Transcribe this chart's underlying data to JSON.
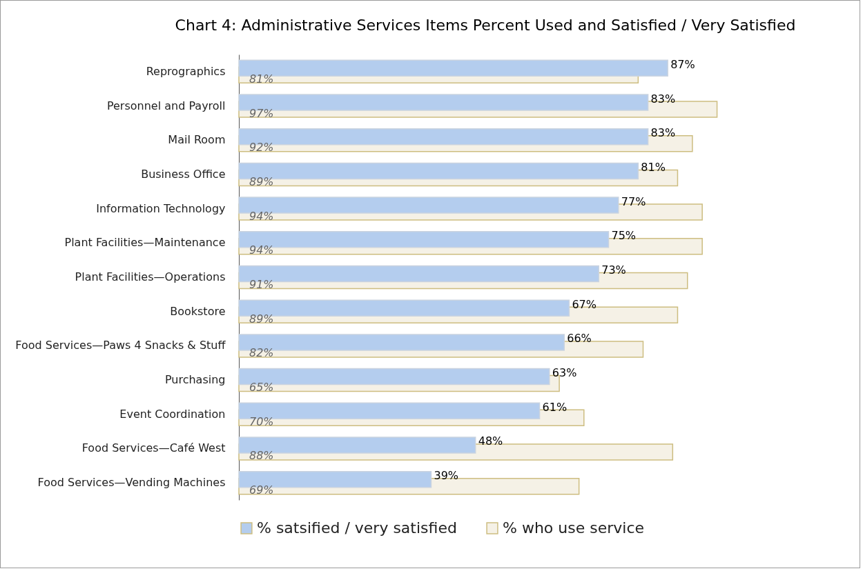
{
  "chart_data": {
    "type": "bar",
    "orientation": "horizontal",
    "title": "Chart 4: Administrative Services Items Percent Used and Satisfied / Very Satisfied",
    "categories": [
      "Reprographics",
      "Personnel and Payroll",
      "Mail Room",
      "Business Office",
      "Information Technology",
      "Plant Facilities—Maintenance",
      "Plant Facilities—Operations",
      "Bookstore",
      "Food Services—Paws 4 Snacks & Stuff",
      "Purchasing",
      "Event Coordination",
      "Food Services—Café West",
      "Food Services—Vending Machines"
    ],
    "series": [
      {
        "name": "% satsified / very satisfied",
        "color": "#b4cdee",
        "values": [
          87,
          83,
          83,
          81,
          77,
          75,
          73,
          67,
          66,
          63,
          61,
          48,
          39
        ],
        "value_labels": [
          "87%",
          "83%",
          "83%",
          "81%",
          "77%",
          "75%",
          "73%",
          "67%",
          "66%",
          "63%",
          "61%",
          "48%",
          "39%"
        ]
      },
      {
        "name": "% who use service",
        "color": "#f5f1e6",
        "values": [
          81,
          97,
          92,
          89,
          94,
          94,
          91,
          89,
          82,
          65,
          70,
          88,
          69
        ],
        "value_labels": [
          "81%",
          "97%",
          "92%",
          "89%",
          "94%",
          "94%",
          "91%",
          "89%",
          "82%",
          "65%",
          "70%",
          "88%",
          "69%"
        ]
      }
    ],
    "legend": "bottom"
  }
}
